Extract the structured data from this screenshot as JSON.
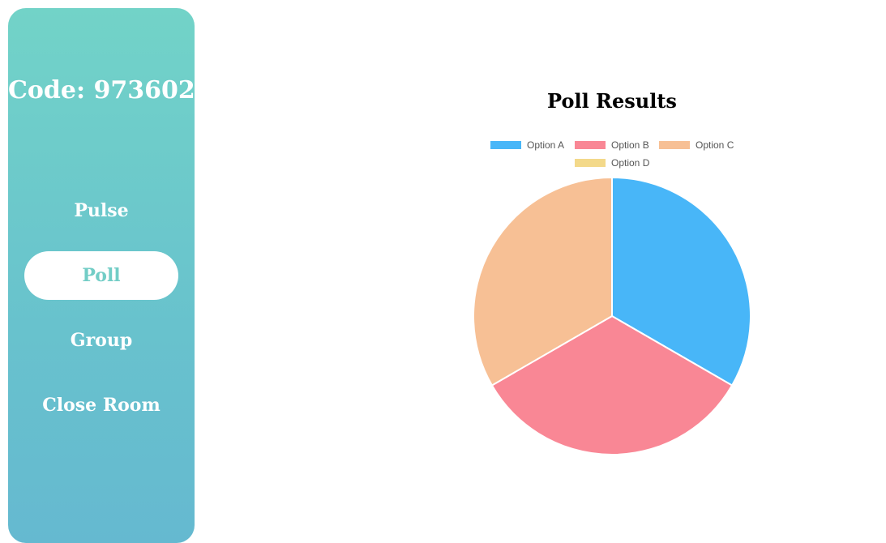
{
  "sidebar": {
    "room_code": "Code: 973602",
    "nav": [
      {
        "label": "Pulse",
        "active": false
      },
      {
        "label": "Poll",
        "active": true
      },
      {
        "label": "Group",
        "active": false
      },
      {
        "label": "Close Room",
        "active": false
      }
    ],
    "gradient_top": "#72d3c8",
    "gradient_bottom": "#65b9d0"
  },
  "chart_data": {
    "type": "pie",
    "title": "Poll Results",
    "legend_position": "top",
    "categories": [
      "Option A",
      "Option B",
      "Option C",
      "Option D"
    ],
    "values": [
      1,
      1,
      1,
      0
    ],
    "colors": [
      "#48b6f8",
      "#f98795",
      "#f7c095",
      "#f3d98a"
    ]
  }
}
